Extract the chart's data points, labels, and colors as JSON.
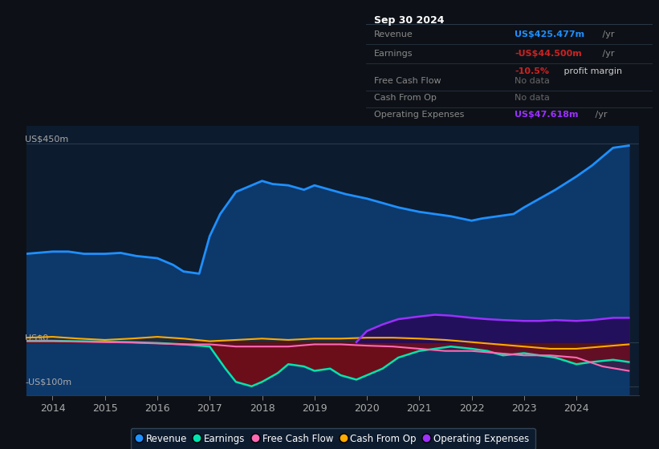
{
  "bg_color": "#0d1117",
  "plot_bg_color": "#0d1b2e",
  "info_bg_color": "#0a0e14",
  "title_box": {
    "date": "Sep 30 2024",
    "rows": [
      {
        "label": "Revenue",
        "value": "US$425.477m",
        "value_color": "#1e90ff",
        "suffix": " /yr",
        "extra": null,
        "extra_color": null
      },
      {
        "label": "Earnings",
        "value": "-US$44.500m",
        "value_color": "#cc2222",
        "suffix": " /yr",
        "extra": "-10.5% profit margin",
        "extra_pct_color": "#cc2222",
        "extra_text_color": "#cccccc"
      },
      {
        "label": "Free Cash Flow",
        "value": "No data",
        "value_color": "#666666",
        "suffix": "",
        "extra": null,
        "extra_color": null
      },
      {
        "label": "Cash From Op",
        "value": "No data",
        "value_color": "#666666",
        "suffix": "",
        "extra": null,
        "extra_color": null
      },
      {
        "label": "Operating Expenses",
        "value": "US$47.618m",
        "value_color": "#9b30ff",
        "suffix": " /yr",
        "extra": null,
        "extra_color": null
      }
    ]
  },
  "y_label_top": "US$450m",
  "y_label_zero": "US$0",
  "y_label_bottom": "-US$100m",
  "x_ticks": [
    "2014",
    "2015",
    "2016",
    "2017",
    "2018",
    "2019",
    "2020",
    "2021",
    "2022",
    "2023",
    "2024"
  ],
  "x_tick_vals": [
    2014,
    2015,
    2016,
    2017,
    2018,
    2019,
    2020,
    2021,
    2022,
    2023,
    2024
  ],
  "ylim": [
    -120,
    490
  ],
  "xlim": [
    2013.5,
    2025.2
  ],
  "revenue": {
    "x": [
      2013.5,
      2014.0,
      2014.3,
      2014.6,
      2015.0,
      2015.3,
      2015.6,
      2016.0,
      2016.3,
      2016.5,
      2016.8,
      2017.0,
      2017.2,
      2017.5,
      2017.8,
      2018.0,
      2018.2,
      2018.5,
      2018.8,
      2019.0,
      2019.3,
      2019.6,
      2020.0,
      2020.3,
      2020.6,
      2021.0,
      2021.3,
      2021.6,
      2022.0,
      2022.2,
      2022.5,
      2022.8,
      2023.0,
      2023.3,
      2023.6,
      2024.0,
      2024.3,
      2024.7,
      2025.0
    ],
    "y": [
      200,
      205,
      205,
      200,
      200,
      202,
      195,
      190,
      175,
      160,
      155,
      240,
      290,
      340,
      355,
      365,
      358,
      355,
      345,
      355,
      345,
      335,
      325,
      315,
      305,
      295,
      290,
      285,
      275,
      280,
      285,
      290,
      305,
      325,
      345,
      375,
      400,
      440,
      445
    ],
    "color": "#1e90ff",
    "fill_color": "#0d3a6e",
    "lw": 2.0
  },
  "earnings": {
    "x": [
      2013.5,
      2014.0,
      2014.5,
      2015.0,
      2015.5,
      2016.0,
      2016.5,
      2017.0,
      2017.3,
      2017.5,
      2017.8,
      2018.0,
      2018.3,
      2018.5,
      2018.8,
      2019.0,
      2019.3,
      2019.5,
      2019.8,
      2020.0,
      2020.3,
      2020.6,
      2021.0,
      2021.3,
      2021.6,
      2022.0,
      2022.3,
      2022.6,
      2023.0,
      2023.3,
      2023.6,
      2024.0,
      2024.3,
      2024.7,
      2025.0
    ],
    "y": [
      3,
      3,
      2,
      1,
      0,
      -2,
      -5,
      -10,
      -60,
      -90,
      -100,
      -90,
      -70,
      -50,
      -55,
      -65,
      -60,
      -75,
      -85,
      -75,
      -60,
      -35,
      -20,
      -15,
      -10,
      -15,
      -20,
      -30,
      -25,
      -30,
      -35,
      -50,
      -45,
      -40,
      -45
    ],
    "color": "#00e5b0",
    "fill_color": "#8b0000",
    "lw": 1.8
  },
  "free_cash_flow": {
    "x": [
      2013.5,
      2014.0,
      2014.5,
      2015.0,
      2015.5,
      2016.0,
      2016.5,
      2017.0,
      2017.5,
      2018.0,
      2018.5,
      2019.0,
      2019.5,
      2020.0,
      2020.5,
      2021.0,
      2021.5,
      2022.0,
      2022.5,
      2023.0,
      2023.5,
      2024.0,
      2024.5,
      2025.0
    ],
    "y": [
      2,
      2,
      1,
      0,
      -1,
      -3,
      -5,
      -5,
      -10,
      -10,
      -10,
      -5,
      -5,
      -8,
      -10,
      -15,
      -20,
      -20,
      -25,
      -30,
      -30,
      -35,
      -55,
      -65
    ],
    "color": "#ff69b4",
    "fill_color": "#5a1030",
    "lw": 1.5
  },
  "cash_from_op": {
    "x": [
      2013.5,
      2014.0,
      2014.5,
      2015.0,
      2015.5,
      2016.0,
      2016.5,
      2017.0,
      2017.5,
      2018.0,
      2018.5,
      2019.0,
      2019.5,
      2020.0,
      2020.5,
      2021.0,
      2021.5,
      2022.0,
      2022.5,
      2023.0,
      2023.5,
      2024.0,
      2024.5,
      2025.0
    ],
    "y": [
      10,
      12,
      8,
      5,
      8,
      12,
      8,
      2,
      5,
      8,
      5,
      8,
      8,
      10,
      10,
      8,
      5,
      0,
      -5,
      -10,
      -15,
      -15,
      -10,
      -5
    ],
    "color": "#ffaa00",
    "fill_color": "#3a2000",
    "lw": 1.5
  },
  "op_expenses": {
    "x": [
      2019.8,
      2020.0,
      2020.3,
      2020.6,
      2021.0,
      2021.3,
      2021.6,
      2022.0,
      2022.3,
      2022.6,
      2023.0,
      2023.3,
      2023.6,
      2024.0,
      2024.3,
      2024.7,
      2025.0
    ],
    "y": [
      0,
      25,
      40,
      52,
      58,
      62,
      60,
      55,
      52,
      50,
      48,
      48,
      50,
      48,
      50,
      55,
      55
    ],
    "color": "#9b30ff",
    "fill_color": "#280a5a",
    "lw": 1.8
  },
  "legend": [
    {
      "label": "Revenue",
      "color": "#1e90ff"
    },
    {
      "label": "Earnings",
      "color": "#00e5b0"
    },
    {
      "label": "Free Cash Flow",
      "color": "#ff69b4"
    },
    {
      "label": "Cash From Op",
      "color": "#ffaa00"
    },
    {
      "label": "Operating Expenses",
      "color": "#9b30ff"
    }
  ]
}
